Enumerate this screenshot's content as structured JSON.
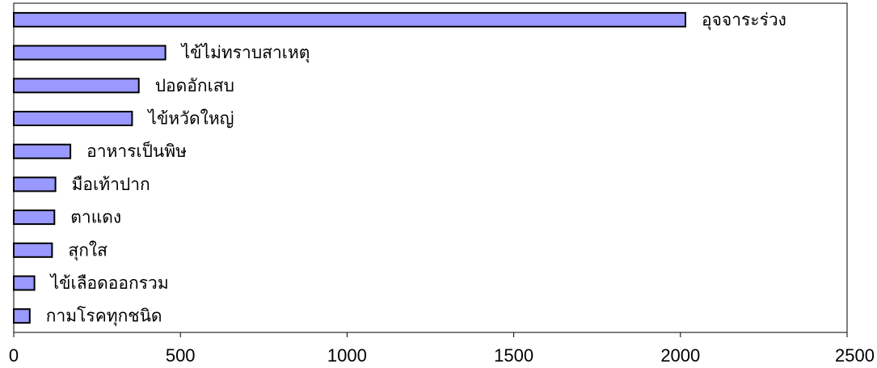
{
  "chart_data": {
    "type": "bar",
    "orientation": "horizontal",
    "categories": [
      "อุจจาระร่วง",
      "ไข้ไม่ทราบสาเหตุ",
      "ปอดอักเสบ",
      "ไข้หวัดใหญ่",
      "อาหารเป็นพิษ",
      "มือเท้าปาก",
      "ตาแดง",
      "สุกใส",
      "ไข้เลือดออกรวม",
      "กามโรคทุกชนิด"
    ],
    "values": [
      2015,
      455,
      375,
      355,
      170,
      125,
      122,
      115,
      62,
      48
    ],
    "xlim": [
      0,
      2500
    ],
    "xticks": [
      "0",
      "500",
      "1000",
      "1500",
      "2000",
      "2500"
    ],
    "title": "",
    "xlabel": "",
    "ylabel": "",
    "grid": false,
    "legend": "none",
    "colors": {
      "bar_fill": "#9999FF",
      "bar_stroke": "#000000",
      "axis": "#000000"
    }
  }
}
